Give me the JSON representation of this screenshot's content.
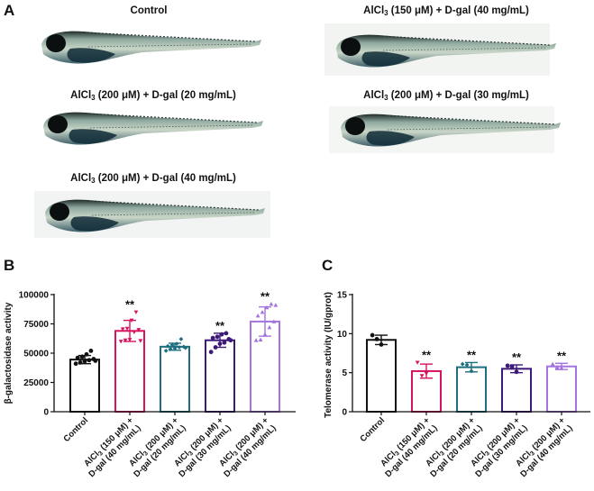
{
  "figure": {
    "panels": {
      "a": "A",
      "b": "B",
      "c": "C"
    },
    "fish_images": [
      {
        "title_pre": "Control",
        "title_sub": "",
        "title_post": ""
      },
      {
        "title_pre": "AlCl",
        "title_sub": "3",
        "title_post": " (150 μM) + D-gal (40 mg/mL)"
      },
      {
        "title_pre": "AlCl",
        "title_sub": "3",
        "title_post": " (200 μM) + D-gal (20 mg/mL)"
      },
      {
        "title_pre": "AlCl",
        "title_sub": "3",
        "title_post": " (200 μM) + D-gal (30 mg/mL)"
      },
      {
        "title_pre": "AlCl",
        "title_sub": "3",
        "title_post": " (200 μM) + D-gal (40 mg/mL)"
      }
    ]
  },
  "colors": {
    "control": "#111111",
    "alcl150_dgal40": "#d6135f",
    "alcl200_dgal20": "#1d6f7f",
    "alcl200_dgal30": "#3d1a78",
    "alcl200_dgal40": "#a374e0"
  },
  "chart_data": [
    {
      "type": "bar",
      "panel": "B",
      "title": "",
      "xlabel": "",
      "ylabel": "β-galactosidase activity",
      "ylim": [
        0,
        100000
      ],
      "yticks": [
        "0",
        "25000",
        "50000",
        "75000",
        "100000"
      ],
      "ytick_values": [
        0,
        25000,
        50000,
        75000,
        100000
      ],
      "categories": [
        {
          "line1_pre": "Control",
          "line1_sub": "",
          "line1_post": "",
          "line2": ""
        },
        {
          "line1_pre": "AlCl",
          "line1_sub": "3",
          "line1_post": " (150 μM) +",
          "line2": "D-gal (40 mg/mL)"
        },
        {
          "line1_pre": "AlCl",
          "line1_sub": "3",
          "line1_post": " (200 μM) +",
          "line2": "D-gal (20 mg/mL)"
        },
        {
          "line1_pre": "AlCl",
          "line1_sub": "3",
          "line1_post": " (200 μM) +",
          "line2": "D-gal (30 mg/mL)"
        },
        {
          "line1_pre": "AlCl",
          "line1_sub": "3",
          "line1_post": " (200 μM) +",
          "line2": "D-gal (40 mg/mL)"
        }
      ],
      "values": [
        44500,
        69000,
        55500,
        61000,
        77000
      ],
      "errors": [
        3500,
        9000,
        3000,
        6000,
        12500
      ],
      "significance": [
        "",
        "**",
        "",
        "**",
        "**"
      ],
      "points": [
        [
          41000,
          42000,
          43000,
          44000,
          45000,
          46000,
          47000,
          49000,
          52000,
          43500
        ],
        [
          60000,
          61000,
          61500,
          68000,
          70000,
          70500,
          71000,
          78000,
          85000,
          60500
        ],
        [
          52000,
          53500,
          54000,
          55000,
          55500,
          56000,
          57000,
          58000,
          62000,
          54500
        ],
        [
          51000,
          55000,
          58000,
          59000,
          62000,
          63000,
          64000,
          66000,
          67000,
          61000
        ],
        [
          61000,
          61500,
          66000,
          72000,
          77000,
          82000,
          85000,
          89000,
          92000,
          91000
        ]
      ],
      "markers": [
        "circle",
        "triangle-down",
        "diamond",
        "circle",
        "triangle"
      ],
      "grid": false
    },
    {
      "type": "bar",
      "panel": "C",
      "title": "",
      "xlabel": "",
      "ylabel": "Telomerase activity (IU/gprot)",
      "ylim": [
        0,
        15
      ],
      "yticks": [
        "0",
        "5",
        "10",
        "15"
      ],
      "ytick_values": [
        0,
        5,
        10,
        15
      ],
      "categories": [
        {
          "line1_pre": "Control",
          "line1_sub": "",
          "line1_post": "",
          "line2": ""
        },
        {
          "line1_pre": "AlCl",
          "line1_sub": "3",
          "line1_post": " (150 μM) +",
          "line2": "D-gal (40 mg/mL)"
        },
        {
          "line1_pre": "AlCl",
          "line1_sub": "3",
          "line1_post": " (200 μM) +",
          "line2": "D-gal (20 mg/mL)"
        },
        {
          "line1_pre": "AlCl",
          "line1_sub": "3",
          "line1_post": " (200 μM) +",
          "line2": "D-gal (30 mg/mL)"
        },
        {
          "line1_pre": "AlCl",
          "line1_sub": "3",
          "line1_post": " (200 μM) +",
          "line2": "D-gal (40 mg/mL)"
        }
      ],
      "values": [
        9.2,
        5.2,
        5.7,
        5.5,
        5.8
      ],
      "errors": [
        0.6,
        0.9,
        0.6,
        0.5,
        0.4
      ],
      "significance": [
        "",
        "**",
        "**",
        "**",
        "**"
      ],
      "points": [
        [
          9.8,
          9.3,
          8.6
        ],
        [
          6.3,
          4.6,
          4.9
        ],
        [
          6.1,
          6.0,
          5.2
        ],
        [
          5.9,
          5.8,
          5.1
        ],
        [
          6.1,
          5.7,
          5.6
        ]
      ],
      "markers": [
        "circle",
        "triangle-down",
        "diamond",
        "circle",
        "triangle"
      ],
      "grid": false
    }
  ]
}
